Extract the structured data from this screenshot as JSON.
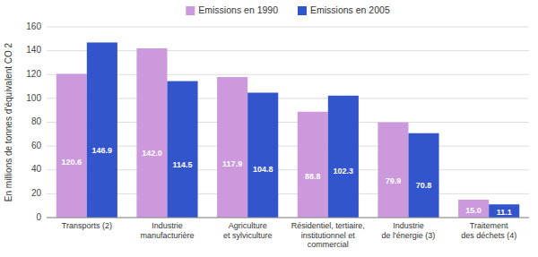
{
  "chart_data": {
    "type": "bar",
    "y_label": "En millions de tonnes d’équivalent CO 2",
    "categories": [
      "Transports (2)",
      "Industrie\nmanufacturière",
      "Agriculture\net sylviculture",
      "Résidentiel, tertiaire,\ninstitutionnel et\ncommercial",
      "Industrie\nde l'énergie (3)",
      "Traitement\ndes déchets (4)"
    ],
    "series": [
      {
        "name": "Emissions en 1990",
        "color": "#cc99dd",
        "values": [
          120.6,
          142.0,
          117.9,
          88.8,
          79.9,
          15.0
        ],
        "value_labels": [
          "120.6",
          "142.0",
          "117.9",
          "88.8",
          "79.9",
          "15.0"
        ]
      },
      {
        "name": "Emissions en 2005",
        "color": "#3355cc",
        "values": [
          146.9,
          114.5,
          104.8,
          102.3,
          70.8,
          11.1
        ]
      }
    ],
    "ylim": [
      0,
      160
    ],
    "yticks": [
      0,
      20,
      40,
      60,
      80,
      100,
      120,
      140,
      160
    ],
    "grid": true,
    "legend": "top",
    "data_labels": true
  }
}
